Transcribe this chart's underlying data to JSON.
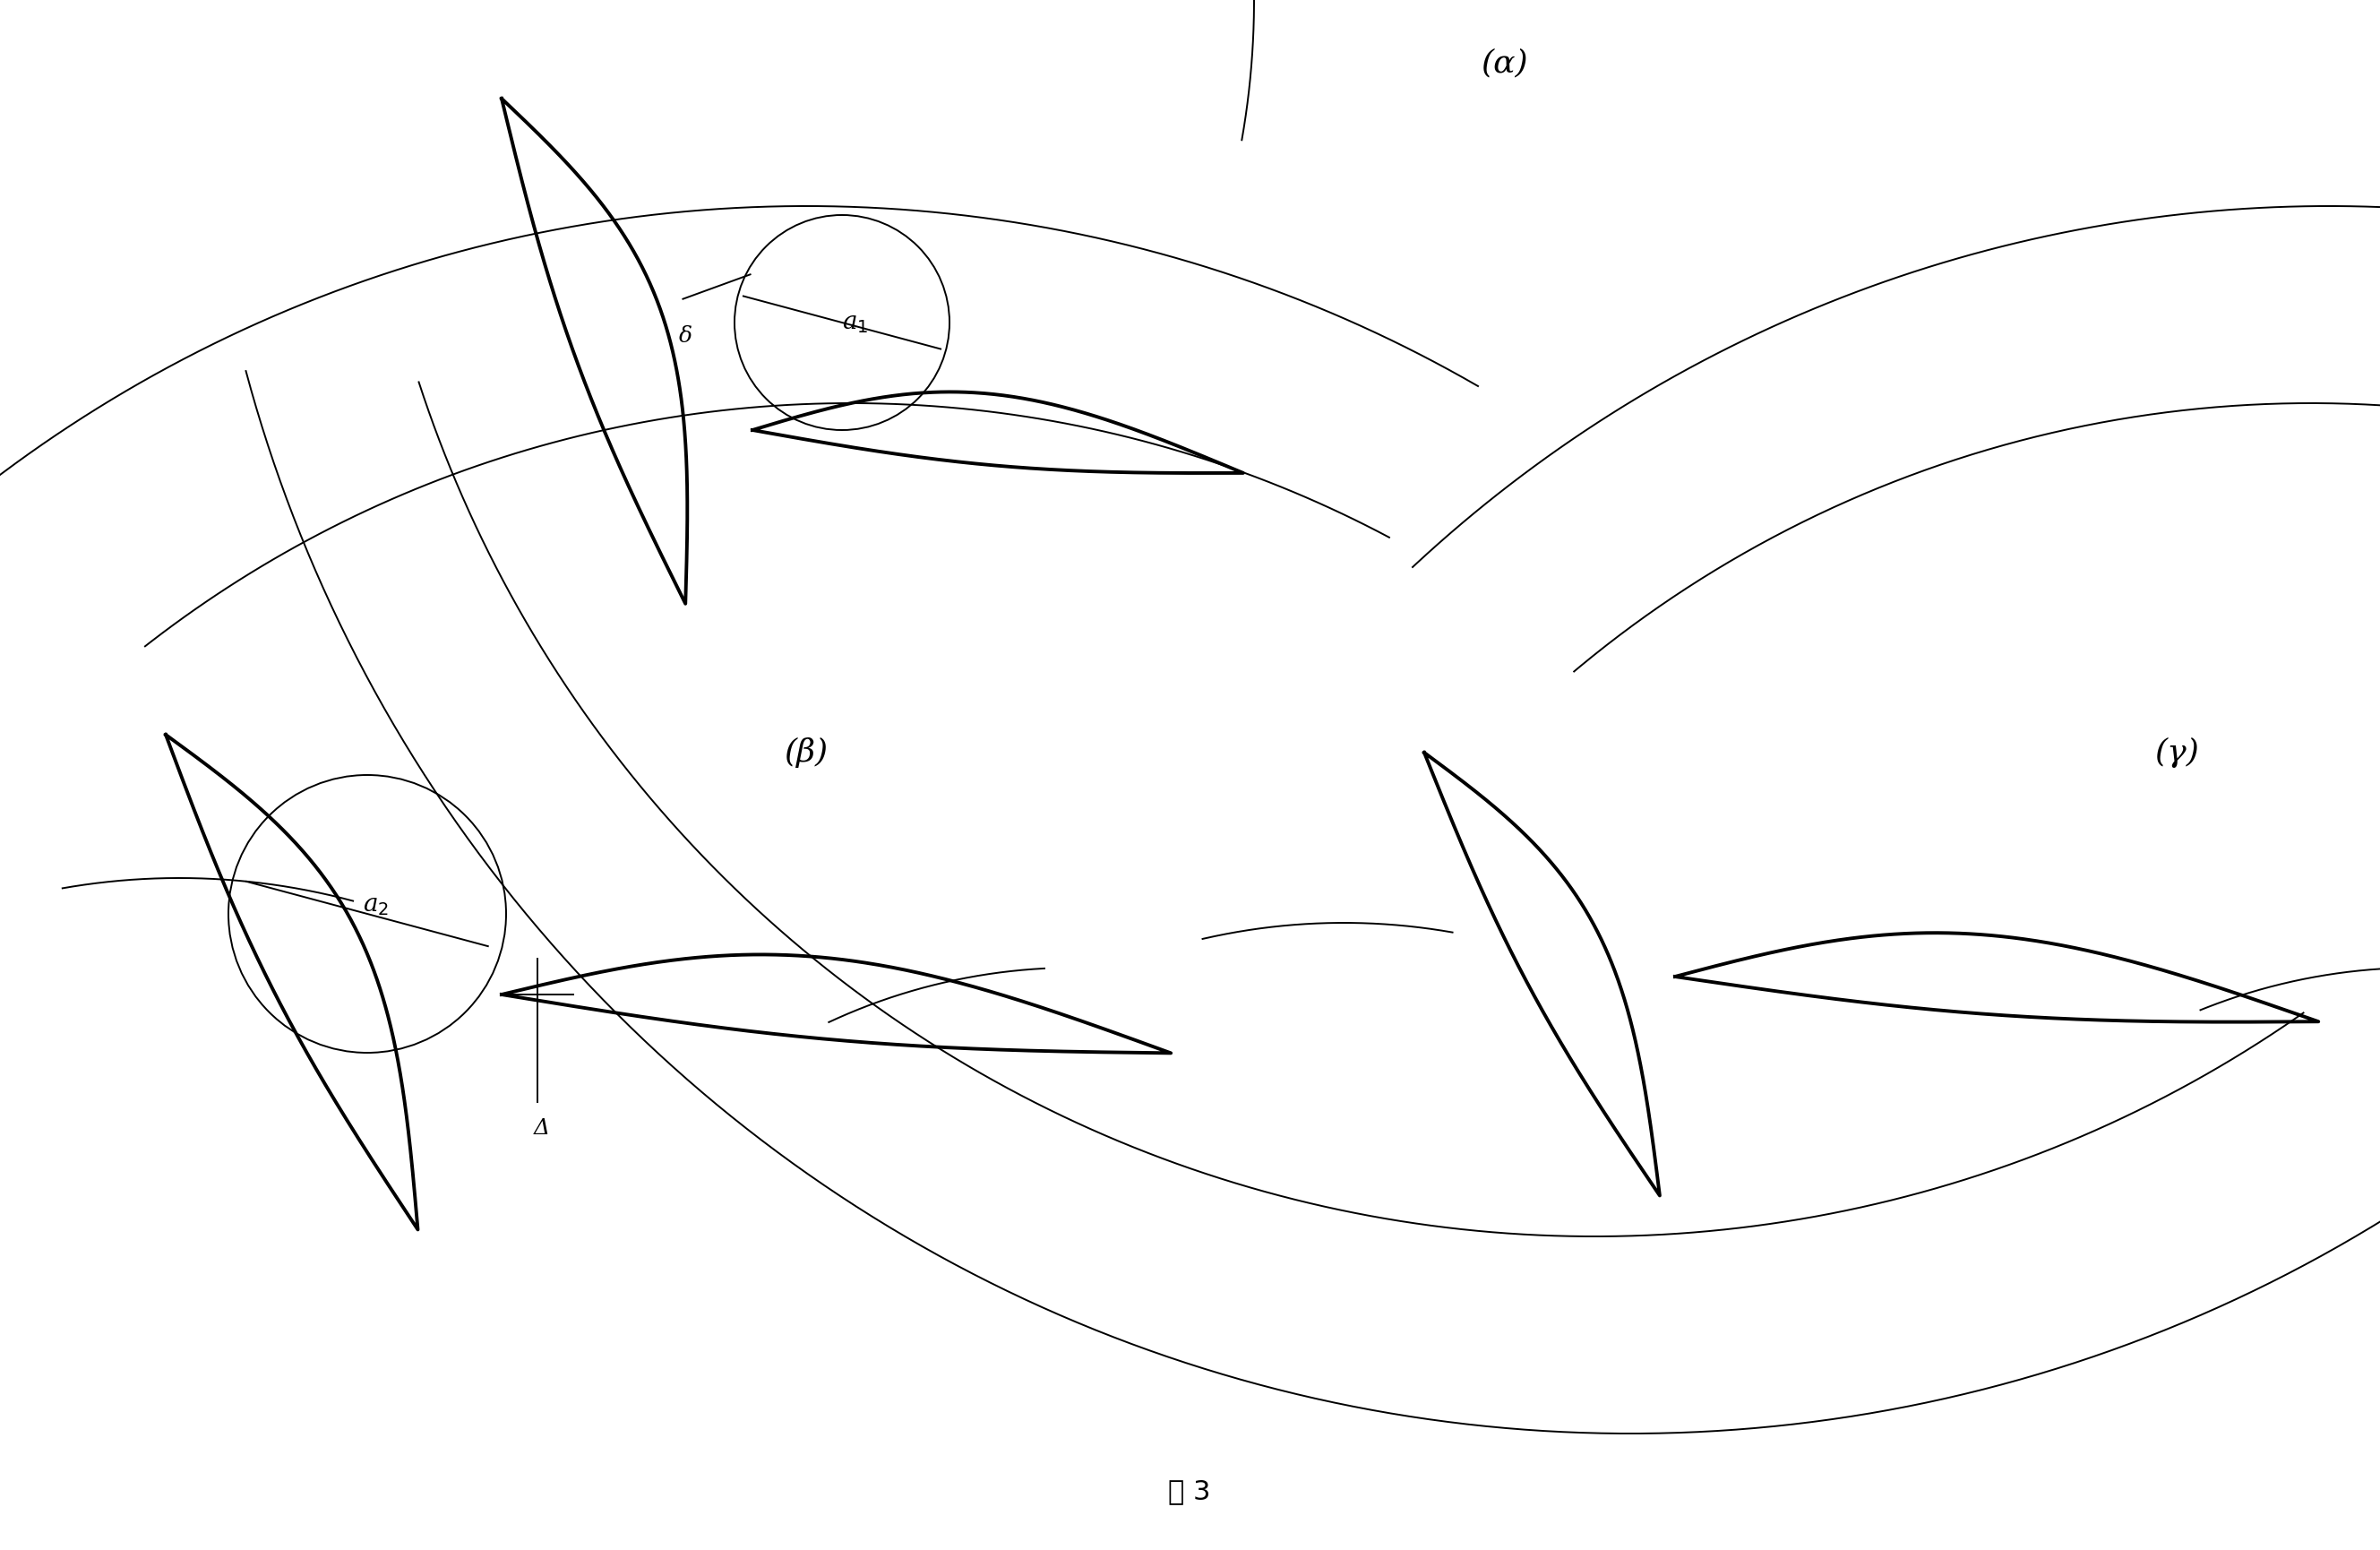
{
  "bg_color": "#ffffff",
  "line_color": "#000000",
  "fig_width": 26.57,
  "fig_height": 17.3,
  "title": "图 3",
  "label_a": "(α)",
  "label_b": "(β)",
  "label_c": "(γ)",
  "delta_label": "δ",
  "a1_label": "a₁",
  "a2_label": "a₂",
  "Delta_label": "Δ",
  "lw_thin": 1.4,
  "lw_thick": 2.8,
  "lw_med": 2.0
}
